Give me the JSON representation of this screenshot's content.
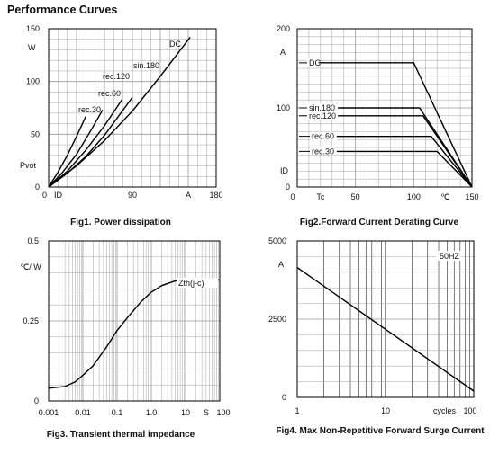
{
  "page": {
    "title": "Performance Curves"
  },
  "colors": {
    "axis": "#000000",
    "grid": "#9a9a9a",
    "curve": "#000000"
  },
  "chart_data": [
    {
      "id": "fig1",
      "type": "line",
      "title": "Fig1. Power dissipation",
      "xlabel": "",
      "ylabel": "",
      "xlim": [
        0,
        180
      ],
      "ylim": [
        0,
        150
      ],
      "x_axis_text": [
        "0",
        "ID",
        "90",
        "A",
        "180"
      ],
      "y_ticks": [
        "150",
        "100",
        "50",
        "0"
      ],
      "y_unit": "W",
      "y_quantity": "Pvot",
      "grid": true,
      "series": [
        {
          "name": "rec.30",
          "points": [
            [
              0,
              0
            ],
            [
              10,
              14
            ],
            [
              20,
              30
            ],
            [
              30,
              48
            ],
            [
              40,
              67
            ]
          ]
        },
        {
          "name": "rec.60",
          "points": [
            [
              0,
              0
            ],
            [
              15,
              14
            ],
            [
              30,
              31
            ],
            [
              45,
              53
            ],
            [
              58,
              73
            ]
          ]
        },
        {
          "name": "rec.120",
          "points": [
            [
              0,
              0
            ],
            [
              20,
              15
            ],
            [
              40,
              35
            ],
            [
              60,
              58
            ],
            [
              79,
              83
            ]
          ]
        },
        {
          "name": "sin.180",
          "points": [
            [
              0,
              0
            ],
            [
              20,
              13
            ],
            [
              40,
              29
            ],
            [
              60,
              49
            ],
            [
              80,
              73
            ],
            [
              90,
              85
            ]
          ]
        },
        {
          "name": "DC",
          "points": [
            [
              0,
              0
            ],
            [
              30,
              20
            ],
            [
              60,
              44
            ],
            [
              90,
              72
            ],
            [
              120,
              105
            ],
            [
              152,
              142
            ]
          ]
        }
      ]
    },
    {
      "id": "fig2",
      "type": "line",
      "title": "Fig2.Forward Current Derating Curve",
      "xlabel": "",
      "ylabel": "",
      "xlim": [
        0,
        150
      ],
      "ylim": [
        0,
        200
      ],
      "x_axis_text": [
        "0",
        "Tc",
        "50",
        "100",
        "℃",
        "150"
      ],
      "y_ticks": [
        "200",
        "100",
        "0"
      ],
      "y_unit": "A",
      "y_quantity": "ID",
      "grid": true,
      "series": [
        {
          "name": "DC",
          "points": [
            [
              0,
              157
            ],
            [
              100,
              157
            ],
            [
              150,
              0
            ]
          ]
        },
        {
          "name": "sin.180",
          "points": [
            [
              0,
              100
            ],
            [
              105,
              100
            ],
            [
              150,
              0
            ]
          ]
        },
        {
          "name": "rec.120",
          "points": [
            [
              0,
              90
            ],
            [
              108,
              90
            ],
            [
              150,
              0
            ]
          ]
        },
        {
          "name": "rec.60",
          "points": [
            [
              0,
              64
            ],
            [
              115,
              64
            ],
            [
              150,
              0
            ]
          ]
        },
        {
          "name": "rec.30",
          "points": [
            [
              0,
              45
            ],
            [
              120,
              45
            ],
            [
              150,
              0
            ]
          ]
        }
      ]
    },
    {
      "id": "fig3",
      "type": "line",
      "title": "Fig3. Transient thermal impedance",
      "xlabel": "",
      "ylabel": "",
      "x_scale": "log",
      "xlim": [
        0.001,
        100
      ],
      "ylim": [
        0,
        0.5
      ],
      "x_ticks": [
        "0.001",
        "0.01",
        "0.1",
        "1.0",
        "10",
        "100"
      ],
      "x_unit": "S",
      "y_ticks": [
        "0.5",
        "0.25",
        "0"
      ],
      "y_unit": "℃/ W",
      "grid": true,
      "series": [
        {
          "name": "Zth(j-c)",
          "points": [
            [
              0.001,
              0.04
            ],
            [
              0.003,
              0.045
            ],
            [
              0.006,
              0.06
            ],
            [
              0.01,
              0.08
            ],
            [
              0.02,
              0.11
            ],
            [
              0.05,
              0.17
            ],
            [
              0.1,
              0.22
            ],
            [
              0.2,
              0.26
            ],
            [
              0.5,
              0.31
            ],
            [
              1,
              0.34
            ],
            [
              2,
              0.36
            ],
            [
              5,
              0.375
            ],
            [
              10,
              0.377
            ],
            [
              100,
              0.378
            ]
          ]
        }
      ]
    },
    {
      "id": "fig4",
      "type": "line",
      "title": "Fig4. Max Non-Repetitive Forward Surge Current",
      "xlabel": "",
      "ylabel": "",
      "x_scale": "log",
      "xlim": [
        1,
        100
      ],
      "ylim": [
        0,
        5000
      ],
      "x_ticks": [
        "1",
        "10",
        "100"
      ],
      "x_unit": "cycles",
      "y_ticks": [
        "5000",
        "2500",
        "0"
      ],
      "y_unit": "A",
      "annotation": "50HZ",
      "grid": true,
      "series": [
        {
          "name": "",
          "points": [
            [
              1,
              4150
            ],
            [
              100,
              200
            ]
          ]
        }
      ]
    }
  ]
}
